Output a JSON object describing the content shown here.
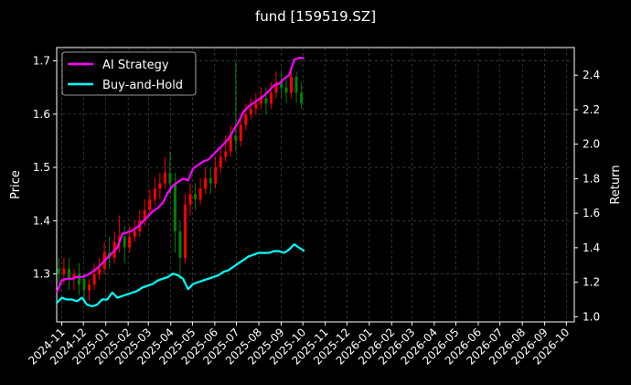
{
  "chart_data": {
    "type": "line",
    "title": "fund [159519.SZ]",
    "ylabel": "Price",
    "y2label": "Return",
    "x_ticks": [
      "2024-11",
      "2024-12",
      "2025-01",
      "2025-02",
      "2025-03",
      "2025-04",
      "2025-05",
      "2025-06",
      "2025-07",
      "2025-08",
      "2025-09",
      "2025-10",
      "2025-11",
      "2025-12",
      "2026-01",
      "2026-02",
      "2026-03",
      "2026-04",
      "2026-05",
      "2026-06",
      "2026-07",
      "2026-08",
      "2026-09",
      "2026-10"
    ],
    "x_range": [
      "2024-10-25",
      "2026-10-12"
    ],
    "ylim": [
      1.21,
      1.725
    ],
    "y2lim": [
      0.97,
      2.56
    ],
    "y_ticks": [
      "1.3",
      "1.4",
      "1.5",
      "1.6",
      "1.7"
    ],
    "y2_ticks": [
      "1.0",
      "1.2",
      "1.4",
      "1.6",
      "1.8",
      "2.0",
      "2.2",
      "2.4"
    ],
    "grid": true,
    "legend_position": "top-left",
    "colors": {
      "background": "#000000",
      "ai_strategy": "#ff00ff",
      "buy_and_hold": "#00ffff",
      "candle_up": "#ff0000",
      "candle_down": "#008000",
      "grid": "#555555"
    },
    "series": [
      {
        "name": "AI Strategy",
        "axis": "right",
        "points": [
          [
            "2024-10-25",
            1.14
          ],
          [
            "2024-11-01",
            1.21
          ],
          [
            "2024-11-08",
            1.22
          ],
          [
            "2024-11-15",
            1.22
          ],
          [
            "2024-11-22",
            1.23
          ],
          [
            "2024-11-29",
            1.23
          ],
          [
            "2024-12-06",
            1.24
          ],
          [
            "2024-12-13",
            1.26
          ],
          [
            "2024-12-20",
            1.28
          ],
          [
            "2024-12-27",
            1.31
          ],
          [
            "2025-01-03",
            1.34
          ],
          [
            "2025-01-10",
            1.37
          ],
          [
            "2025-01-17",
            1.4
          ],
          [
            "2025-01-24",
            1.48
          ],
          [
            "2025-01-31",
            1.49
          ],
          [
            "2025-02-07",
            1.5
          ],
          [
            "2025-02-14",
            1.52
          ],
          [
            "2025-02-21",
            1.55
          ],
          [
            "2025-02-28",
            1.58
          ],
          [
            "2025-03-07",
            1.61
          ],
          [
            "2025-03-14",
            1.63
          ],
          [
            "2025-03-21",
            1.66
          ],
          [
            "2025-03-28",
            1.72
          ],
          [
            "2025-04-04",
            1.76
          ],
          [
            "2025-04-11",
            1.78
          ],
          [
            "2025-04-18",
            1.8
          ],
          [
            "2025-04-25",
            1.79
          ],
          [
            "2025-05-02",
            1.86
          ],
          [
            "2025-05-09",
            1.88
          ],
          [
            "2025-05-16",
            1.9
          ],
          [
            "2025-05-23",
            1.91
          ],
          [
            "2025-05-30",
            1.94
          ],
          [
            "2025-06-06",
            1.97
          ],
          [
            "2025-06-13",
            2.0
          ],
          [
            "2025-06-20",
            2.03
          ],
          [
            "2025-06-27",
            2.08
          ],
          [
            "2025-07-04",
            2.13
          ],
          [
            "2025-07-11",
            2.19
          ],
          [
            "2025-07-18",
            2.22
          ],
          [
            "2025-07-25",
            2.24
          ],
          [
            "2025-08-01",
            2.26
          ],
          [
            "2025-08-08",
            2.28
          ],
          [
            "2025-08-15",
            2.31
          ],
          [
            "2025-08-22",
            2.34
          ],
          [
            "2025-08-29",
            2.35
          ],
          [
            "2025-09-05",
            2.38
          ],
          [
            "2025-09-12",
            2.4
          ],
          [
            "2025-09-19",
            2.49
          ],
          [
            "2025-09-26",
            2.5
          ],
          [
            "2025-10-03",
            2.5
          ]
        ]
      },
      {
        "name": "Buy-and-Hold",
        "axis": "right",
        "points": [
          [
            "2024-10-25",
            1.08
          ],
          [
            "2024-11-01",
            1.11
          ],
          [
            "2024-11-08",
            1.1
          ],
          [
            "2024-11-15",
            1.1
          ],
          [
            "2024-11-22",
            1.09
          ],
          [
            "2024-11-29",
            1.11
          ],
          [
            "2024-12-06",
            1.07
          ],
          [
            "2024-12-13",
            1.06
          ],
          [
            "2024-12-20",
            1.07
          ],
          [
            "2024-12-27",
            1.1
          ],
          [
            "2025-01-03",
            1.1
          ],
          [
            "2025-01-10",
            1.14
          ],
          [
            "2025-01-17",
            1.11
          ],
          [
            "2025-01-24",
            1.12
          ],
          [
            "2025-01-31",
            1.13
          ],
          [
            "2025-02-07",
            1.14
          ],
          [
            "2025-02-14",
            1.15
          ],
          [
            "2025-02-21",
            1.17
          ],
          [
            "2025-02-28",
            1.18
          ],
          [
            "2025-03-07",
            1.19
          ],
          [
            "2025-03-14",
            1.21
          ],
          [
            "2025-03-21",
            1.22
          ],
          [
            "2025-03-28",
            1.23
          ],
          [
            "2025-04-04",
            1.25
          ],
          [
            "2025-04-11",
            1.24
          ],
          [
            "2025-04-18",
            1.22
          ],
          [
            "2025-04-25",
            1.16
          ],
          [
            "2025-05-02",
            1.19
          ],
          [
            "2025-05-09",
            1.2
          ],
          [
            "2025-05-16",
            1.21
          ],
          [
            "2025-05-23",
            1.22
          ],
          [
            "2025-05-30",
            1.23
          ],
          [
            "2025-06-06",
            1.24
          ],
          [
            "2025-06-13",
            1.26
          ],
          [
            "2025-06-20",
            1.27
          ],
          [
            "2025-06-27",
            1.29
          ],
          [
            "2025-07-04",
            1.31
          ],
          [
            "2025-07-11",
            1.33
          ],
          [
            "2025-07-18",
            1.35
          ],
          [
            "2025-07-25",
            1.36
          ],
          [
            "2025-08-01",
            1.37
          ],
          [
            "2025-08-08",
            1.37
          ],
          [
            "2025-08-15",
            1.37
          ],
          [
            "2025-08-22",
            1.38
          ],
          [
            "2025-08-29",
            1.38
          ],
          [
            "2025-09-05",
            1.37
          ],
          [
            "2025-09-12",
            1.39
          ],
          [
            "2025-09-19",
            1.42
          ],
          [
            "2025-09-26",
            1.4
          ],
          [
            "2025-10-03",
            1.38
          ]
        ]
      },
      {
        "axis": "left",
        "type": "candlestick",
        "points": [
          [
            "2024-10-28",
            1.31,
            1.3,
            1.33,
            1.28
          ],
          [
            "2024-11-04",
            1.3,
            1.31,
            1.33,
            1.28
          ],
          [
            "2024-11-11",
            1.31,
            1.29,
            1.33,
            1.27
          ],
          [
            "2024-11-18",
            1.29,
            1.3,
            1.31,
            1.27
          ],
          [
            "2024-11-25",
            1.3,
            1.28,
            1.32,
            1.26
          ],
          [
            "2024-12-02",
            1.29,
            1.27,
            1.3,
            1.25
          ],
          [
            "2024-12-09",
            1.27,
            1.28,
            1.29,
            1.25
          ],
          [
            "2024-12-16",
            1.28,
            1.3,
            1.32,
            1.27
          ],
          [
            "2024-12-23",
            1.3,
            1.31,
            1.33,
            1.29
          ],
          [
            "2024-12-30",
            1.31,
            1.34,
            1.36,
            1.3
          ],
          [
            "2025-01-06",
            1.34,
            1.33,
            1.37,
            1.31
          ],
          [
            "2025-01-13",
            1.33,
            1.36,
            1.38,
            1.32
          ],
          [
            "2025-01-20",
            1.36,
            1.37,
            1.41,
            1.34
          ],
          [
            "2025-01-27",
            1.37,
            1.35,
            1.39,
            1.32
          ],
          [
            "2025-02-03",
            1.35,
            1.37,
            1.39,
            1.34
          ],
          [
            "2025-02-10",
            1.37,
            1.38,
            1.4,
            1.36
          ],
          [
            "2025-02-17",
            1.38,
            1.4,
            1.42,
            1.37
          ],
          [
            "2025-02-24",
            1.4,
            1.42,
            1.44,
            1.39
          ],
          [
            "2025-03-03",
            1.42,
            1.44,
            1.46,
            1.41
          ],
          [
            "2025-03-10",
            1.44,
            1.46,
            1.48,
            1.43
          ],
          [
            "2025-03-17",
            1.46,
            1.47,
            1.49,
            1.44
          ],
          [
            "2025-03-24",
            1.47,
            1.49,
            1.52,
            1.46
          ],
          [
            "2025-03-31",
            1.49,
            1.47,
            1.53,
            1.45
          ],
          [
            "2025-04-07",
            1.47,
            1.38,
            1.49,
            1.34
          ],
          [
            "2025-04-14",
            1.38,
            1.33,
            1.4,
            1.29
          ],
          [
            "2025-04-21",
            1.33,
            1.43,
            1.45,
            1.32
          ],
          [
            "2025-04-28",
            1.43,
            1.45,
            1.47,
            1.41
          ],
          [
            "2025-05-05",
            1.45,
            1.44,
            1.47,
            1.42
          ],
          [
            "2025-05-12",
            1.44,
            1.46,
            1.48,
            1.43
          ],
          [
            "2025-05-19",
            1.46,
            1.48,
            1.5,
            1.45
          ],
          [
            "2025-05-26",
            1.48,
            1.47,
            1.5,
            1.45
          ],
          [
            "2025-06-02",
            1.47,
            1.5,
            1.52,
            1.46
          ],
          [
            "2025-06-09",
            1.5,
            1.52,
            1.54,
            1.49
          ],
          [
            "2025-06-16",
            1.52,
            1.53,
            1.56,
            1.51
          ],
          [
            "2025-06-23",
            1.53,
            1.56,
            1.58,
            1.52
          ],
          [
            "2025-06-30",
            1.56,
            1.55,
            1.7,
            1.53
          ],
          [
            "2025-07-07",
            1.55,
            1.58,
            1.6,
            1.54
          ],
          [
            "2025-07-14",
            1.58,
            1.6,
            1.62,
            1.57
          ],
          [
            "2025-07-21",
            1.6,
            1.61,
            1.63,
            1.59
          ],
          [
            "2025-07-28",
            1.61,
            1.62,
            1.64,
            1.6
          ],
          [
            "2025-08-04",
            1.62,
            1.63,
            1.65,
            1.61
          ],
          [
            "2025-08-11",
            1.63,
            1.62,
            1.65,
            1.6
          ],
          [
            "2025-08-18",
            1.62,
            1.64,
            1.66,
            1.61
          ],
          [
            "2025-08-25",
            1.64,
            1.66,
            1.68,
            1.63
          ],
          [
            "2025-09-01",
            1.66,
            1.65,
            1.68,
            1.63
          ],
          [
            "2025-09-08",
            1.65,
            1.64,
            1.67,
            1.62
          ],
          [
            "2025-09-15",
            1.64,
            1.67,
            1.69,
            1.63
          ],
          [
            "2025-09-22",
            1.67,
            1.64,
            1.68,
            1.62
          ],
          [
            "2025-09-29",
            1.64,
            1.62,
            1.66,
            1.61
          ]
        ]
      }
    ]
  }
}
